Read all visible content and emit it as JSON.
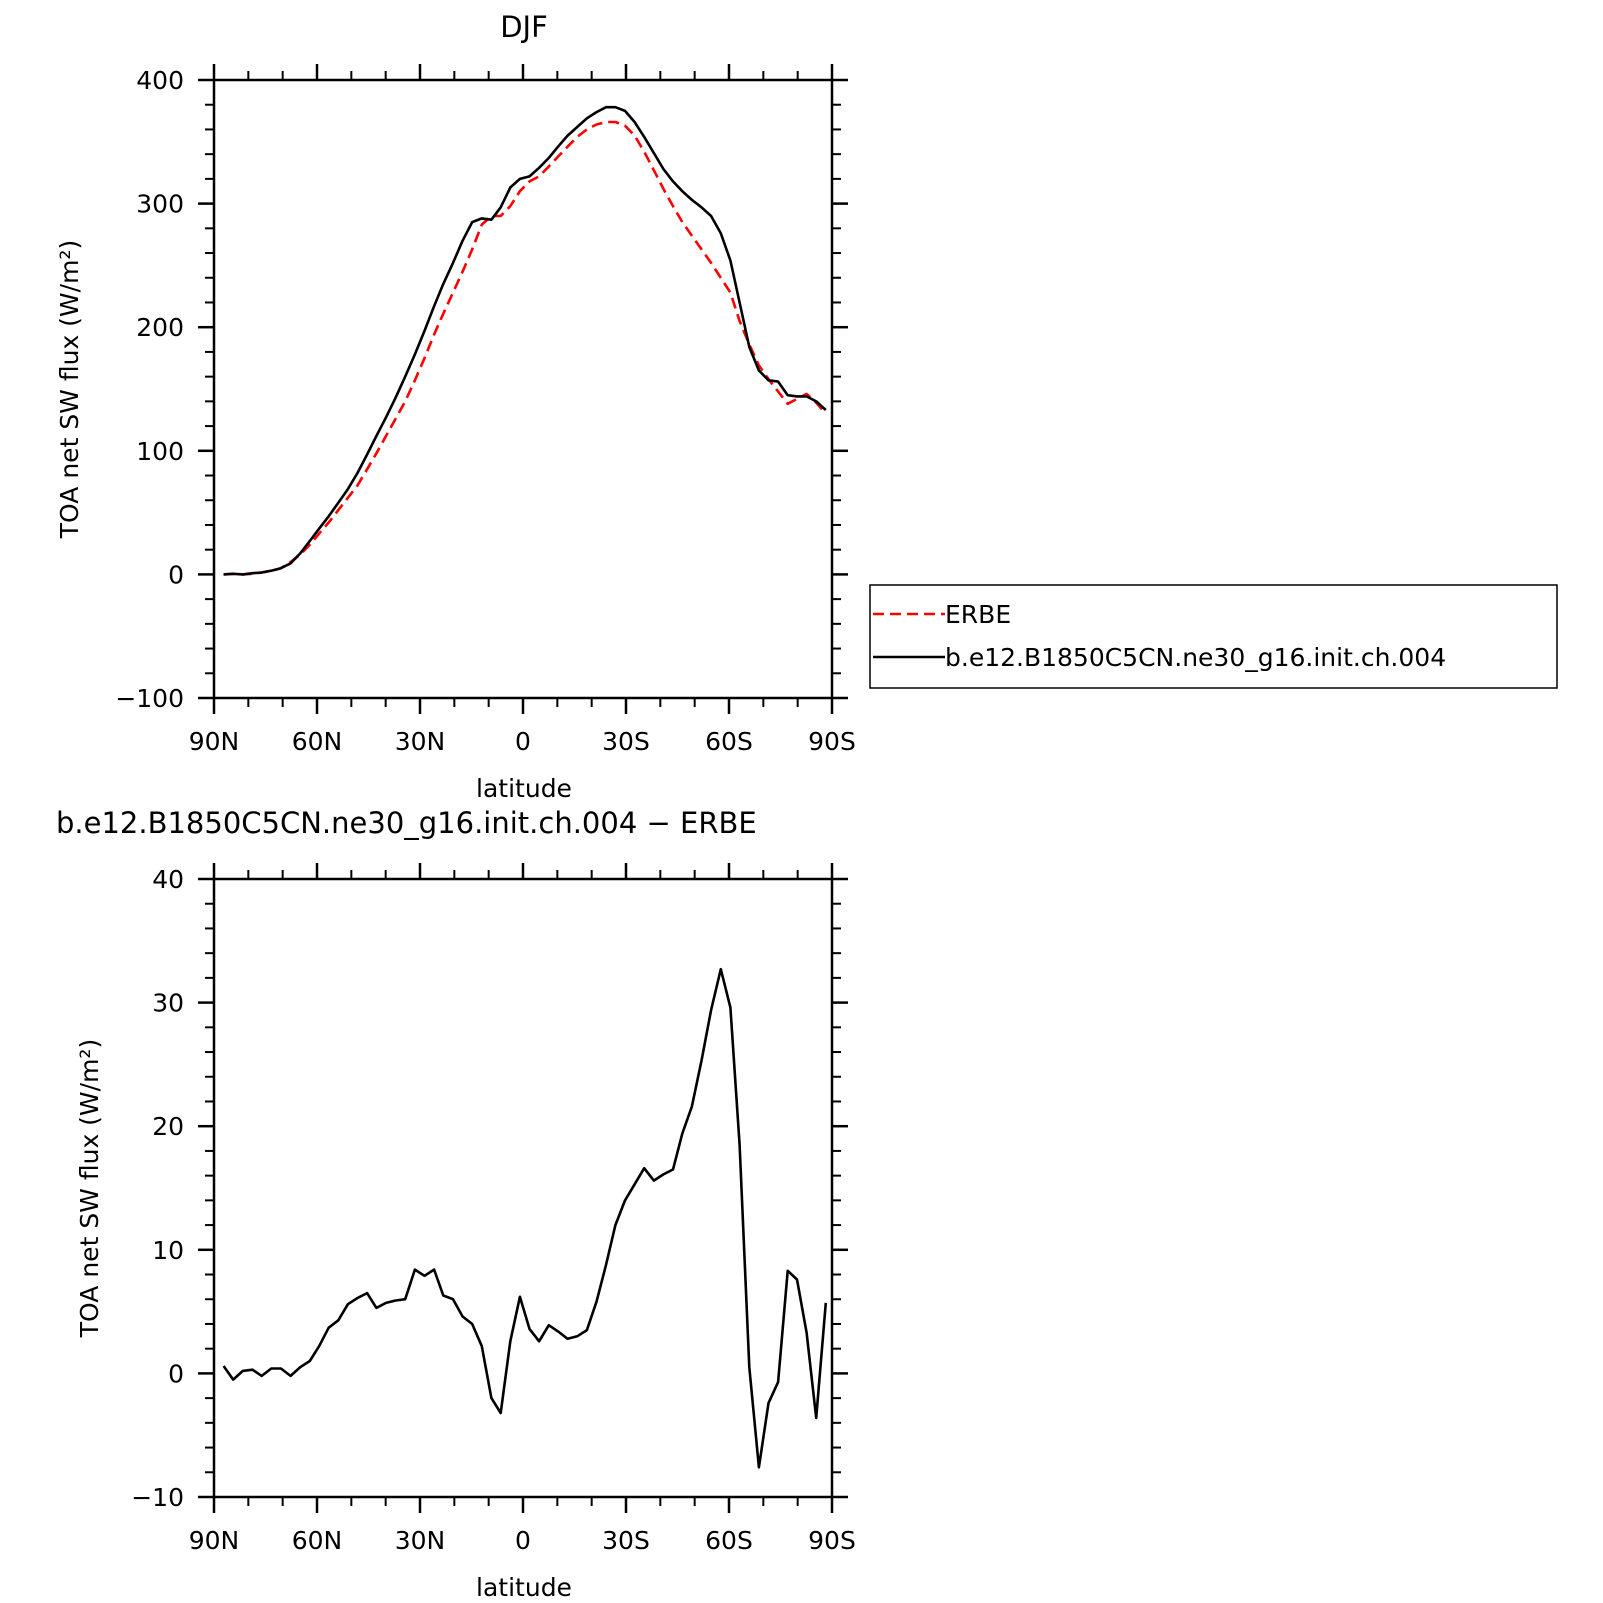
{
  "chart_data": [
    {
      "type": "line",
      "title": "DJF",
      "xlabel": "latitude",
      "ylabel": "TOA net SW flux (W/m²)",
      "xlim": [
        -90,
        90
      ],
      "ylim": [
        -100,
        400
      ],
      "xticks": [
        -90,
        -60,
        -30,
        0,
        30,
        60,
        90
      ],
      "xtick_labels": [
        "90N",
        "60N",
        "30N",
        "0",
        "30S",
        "60S",
        "90S"
      ],
      "yticks": [
        -100,
        0,
        100,
        200,
        300,
        400
      ],
      "ytick_labels": [
        "−100",
        "0",
        "100",
        "200",
        "300",
        "400"
      ],
      "legend_position": "right",
      "series": [
        {
          "name": "ERBE",
          "color": "#ff0000",
          "style": "dashed",
          "x": [
            -87.2,
            -84.4,
            -81.6,
            -78.8,
            -76.1,
            -73.3,
            -70.5,
            -67.7,
            -64.9,
            -62.1,
            -59.4,
            -56.6,
            -53.8,
            -51.0,
            -48.2,
            -45.4,
            -42.7,
            -39.9,
            -37.1,
            -34.3,
            -31.5,
            -28.7,
            -25.9,
            -23.2,
            -20.4,
            -17.6,
            -14.8,
            -12.0,
            -9.2,
            -6.5,
            -3.7,
            -0.9,
            1.9,
            4.7,
            7.5,
            10.2,
            13.0,
            15.8,
            18.6,
            21.4,
            24.2,
            26.9,
            29.7,
            32.5,
            35.3,
            38.1,
            40.9,
            43.7,
            46.4,
            49.2,
            52.0,
            54.8,
            57.6,
            60.4,
            63.1,
            65.9,
            68.7,
            71.5,
            74.3,
            77.1,
            79.8,
            82.6,
            85.4,
            88.2
          ],
          "y": [
            0,
            0.5,
            0,
            0.5,
            1.5,
            3,
            5,
            10,
            16,
            24,
            33,
            42,
            52,
            62,
            72,
            85,
            98,
            112,
            126,
            140,
            157,
            175,
            194,
            211,
            228,
            245,
            263,
            283,
            290,
            290,
            298,
            310,
            318,
            322,
            330,
            338,
            346,
            354,
            360,
            364,
            366,
            366,
            363,
            355,
            342,
            327,
            312,
            298,
            285,
            274,
            263,
            252,
            240,
            228,
            205,
            186,
            169,
            158,
            148,
            138,
            142,
            146,
            139,
            130
          ]
        },
        {
          "name": "b.e12.B1850C5CN.ne30_g16.init.ch.004",
          "color": "#000000",
          "style": "solid",
          "x": [
            -87.2,
            -84.4,
            -81.6,
            -78.8,
            -76.1,
            -73.3,
            -70.5,
            -67.7,
            -64.9,
            -62.1,
            -59.4,
            -56.6,
            -53.8,
            -51.0,
            -48.2,
            -45.4,
            -42.7,
            -39.9,
            -37.1,
            -34.3,
            -31.5,
            -28.7,
            -25.9,
            -23.2,
            -20.4,
            -17.6,
            -14.8,
            -12.0,
            -9.2,
            -6.5,
            -3.7,
            -0.9,
            1.9,
            4.7,
            7.5,
            10.2,
            13.0,
            15.8,
            18.6,
            21.4,
            24.2,
            26.9,
            29.7,
            32.5,
            35.3,
            38.1,
            40.9,
            43.7,
            46.4,
            49.2,
            52.0,
            54.8,
            57.6,
            60.4,
            63.1,
            65.9,
            68.7,
            71.5,
            74.3,
            77.1,
            79.8,
            82.6,
            85.4,
            88.2
          ],
          "y": [
            0,
            0.5,
            0,
            1,
            1.5,
            3,
            5,
            9,
            17,
            27,
            37,
            47,
            58,
            69,
            82,
            97,
            112,
            127,
            143,
            160,
            178,
            197,
            217,
            235,
            252,
            270,
            285,
            288,
            287,
            297,
            313,
            320,
            322,
            329,
            337,
            346,
            355,
            362,
            369,
            374,
            378,
            378,
            375,
            366,
            354,
            341,
            328,
            318,
            310,
            303,
            297,
            290,
            276,
            254,
            220,
            184,
            165,
            157,
            156,
            145,
            144,
            144,
            140,
            133
          ]
        }
      ]
    },
    {
      "type": "line",
      "title": "b.e12.B1850C5CN.ne30_g16.init.ch.004 − ERBE",
      "xlabel": "latitude",
      "ylabel": "TOA net SW flux (W/m²)",
      "xlim": [
        -90,
        90
      ],
      "ylim": [
        -10,
        40
      ],
      "xticks": [
        -90,
        -60,
        -30,
        0,
        30,
        60,
        90
      ],
      "xtick_labels": [
        "90N",
        "60N",
        "30N",
        "0",
        "30S",
        "60S",
        "90S"
      ],
      "yticks": [
        -10,
        0,
        10,
        20,
        30,
        40
      ],
      "ytick_labels": [
        "−10",
        "0",
        "10",
        "20",
        "30",
        "40"
      ],
      "series": [
        {
          "color": "#000000",
          "style": "solid",
          "x": [
            -87.2,
            -84.4,
            -81.6,
            -78.8,
            -76.1,
            -73.3,
            -70.5,
            -67.7,
            -64.9,
            -62.1,
            -59.4,
            -56.6,
            -53.8,
            -51.0,
            -48.2,
            -45.4,
            -42.7,
            -39.9,
            -37.1,
            -34.3,
            -31.5,
            -28.7,
            -25.9,
            -23.2,
            -20.4,
            -17.6,
            -14.8,
            -12.0,
            -9.2,
            -6.5,
            -3.7,
            -0.9,
            1.9,
            4.7,
            7.5,
            10.2,
            13.0,
            15.8,
            18.6,
            21.4,
            24.2,
            26.9,
            29.7,
            32.5,
            35.3,
            38.1,
            40.9,
            43.7,
            46.4,
            49.2,
            52.0,
            54.8,
            57.6,
            60.4,
            63.1,
            65.9,
            68.7,
            71.5,
            74.3,
            77.1,
            79.8,
            82.6,
            85.4,
            88.2
          ],
          "y": [
            0.6,
            -0.5,
            0.2,
            0.3,
            -0.2,
            0.4,
            0.4,
            -0.2,
            0.5,
            1.0,
            2.2,
            3.7,
            4.3,
            5.6,
            6.1,
            6.5,
            5.3,
            5.7,
            5.9,
            6.0,
            8.4,
            7.9,
            8.4,
            6.3,
            6.0,
            4.6,
            4.0,
            2.2,
            -2.0,
            -3.2,
            2.6,
            6.2,
            3.6,
            2.6,
            3.9,
            3.4,
            2.8,
            3.0,
            3.5,
            5.8,
            8.8,
            12.0,
            14.0,
            15.3,
            16.6,
            15.6,
            16.1,
            16.5,
            19.4,
            21.6,
            25.3,
            29.4,
            32.7,
            29.6,
            18.5,
            0.5,
            -7.6,
            -2.4,
            -0.7,
            8.3,
            7.6,
            3.3,
            -3.6,
            5.7
          ]
        }
      ]
    }
  ]
}
